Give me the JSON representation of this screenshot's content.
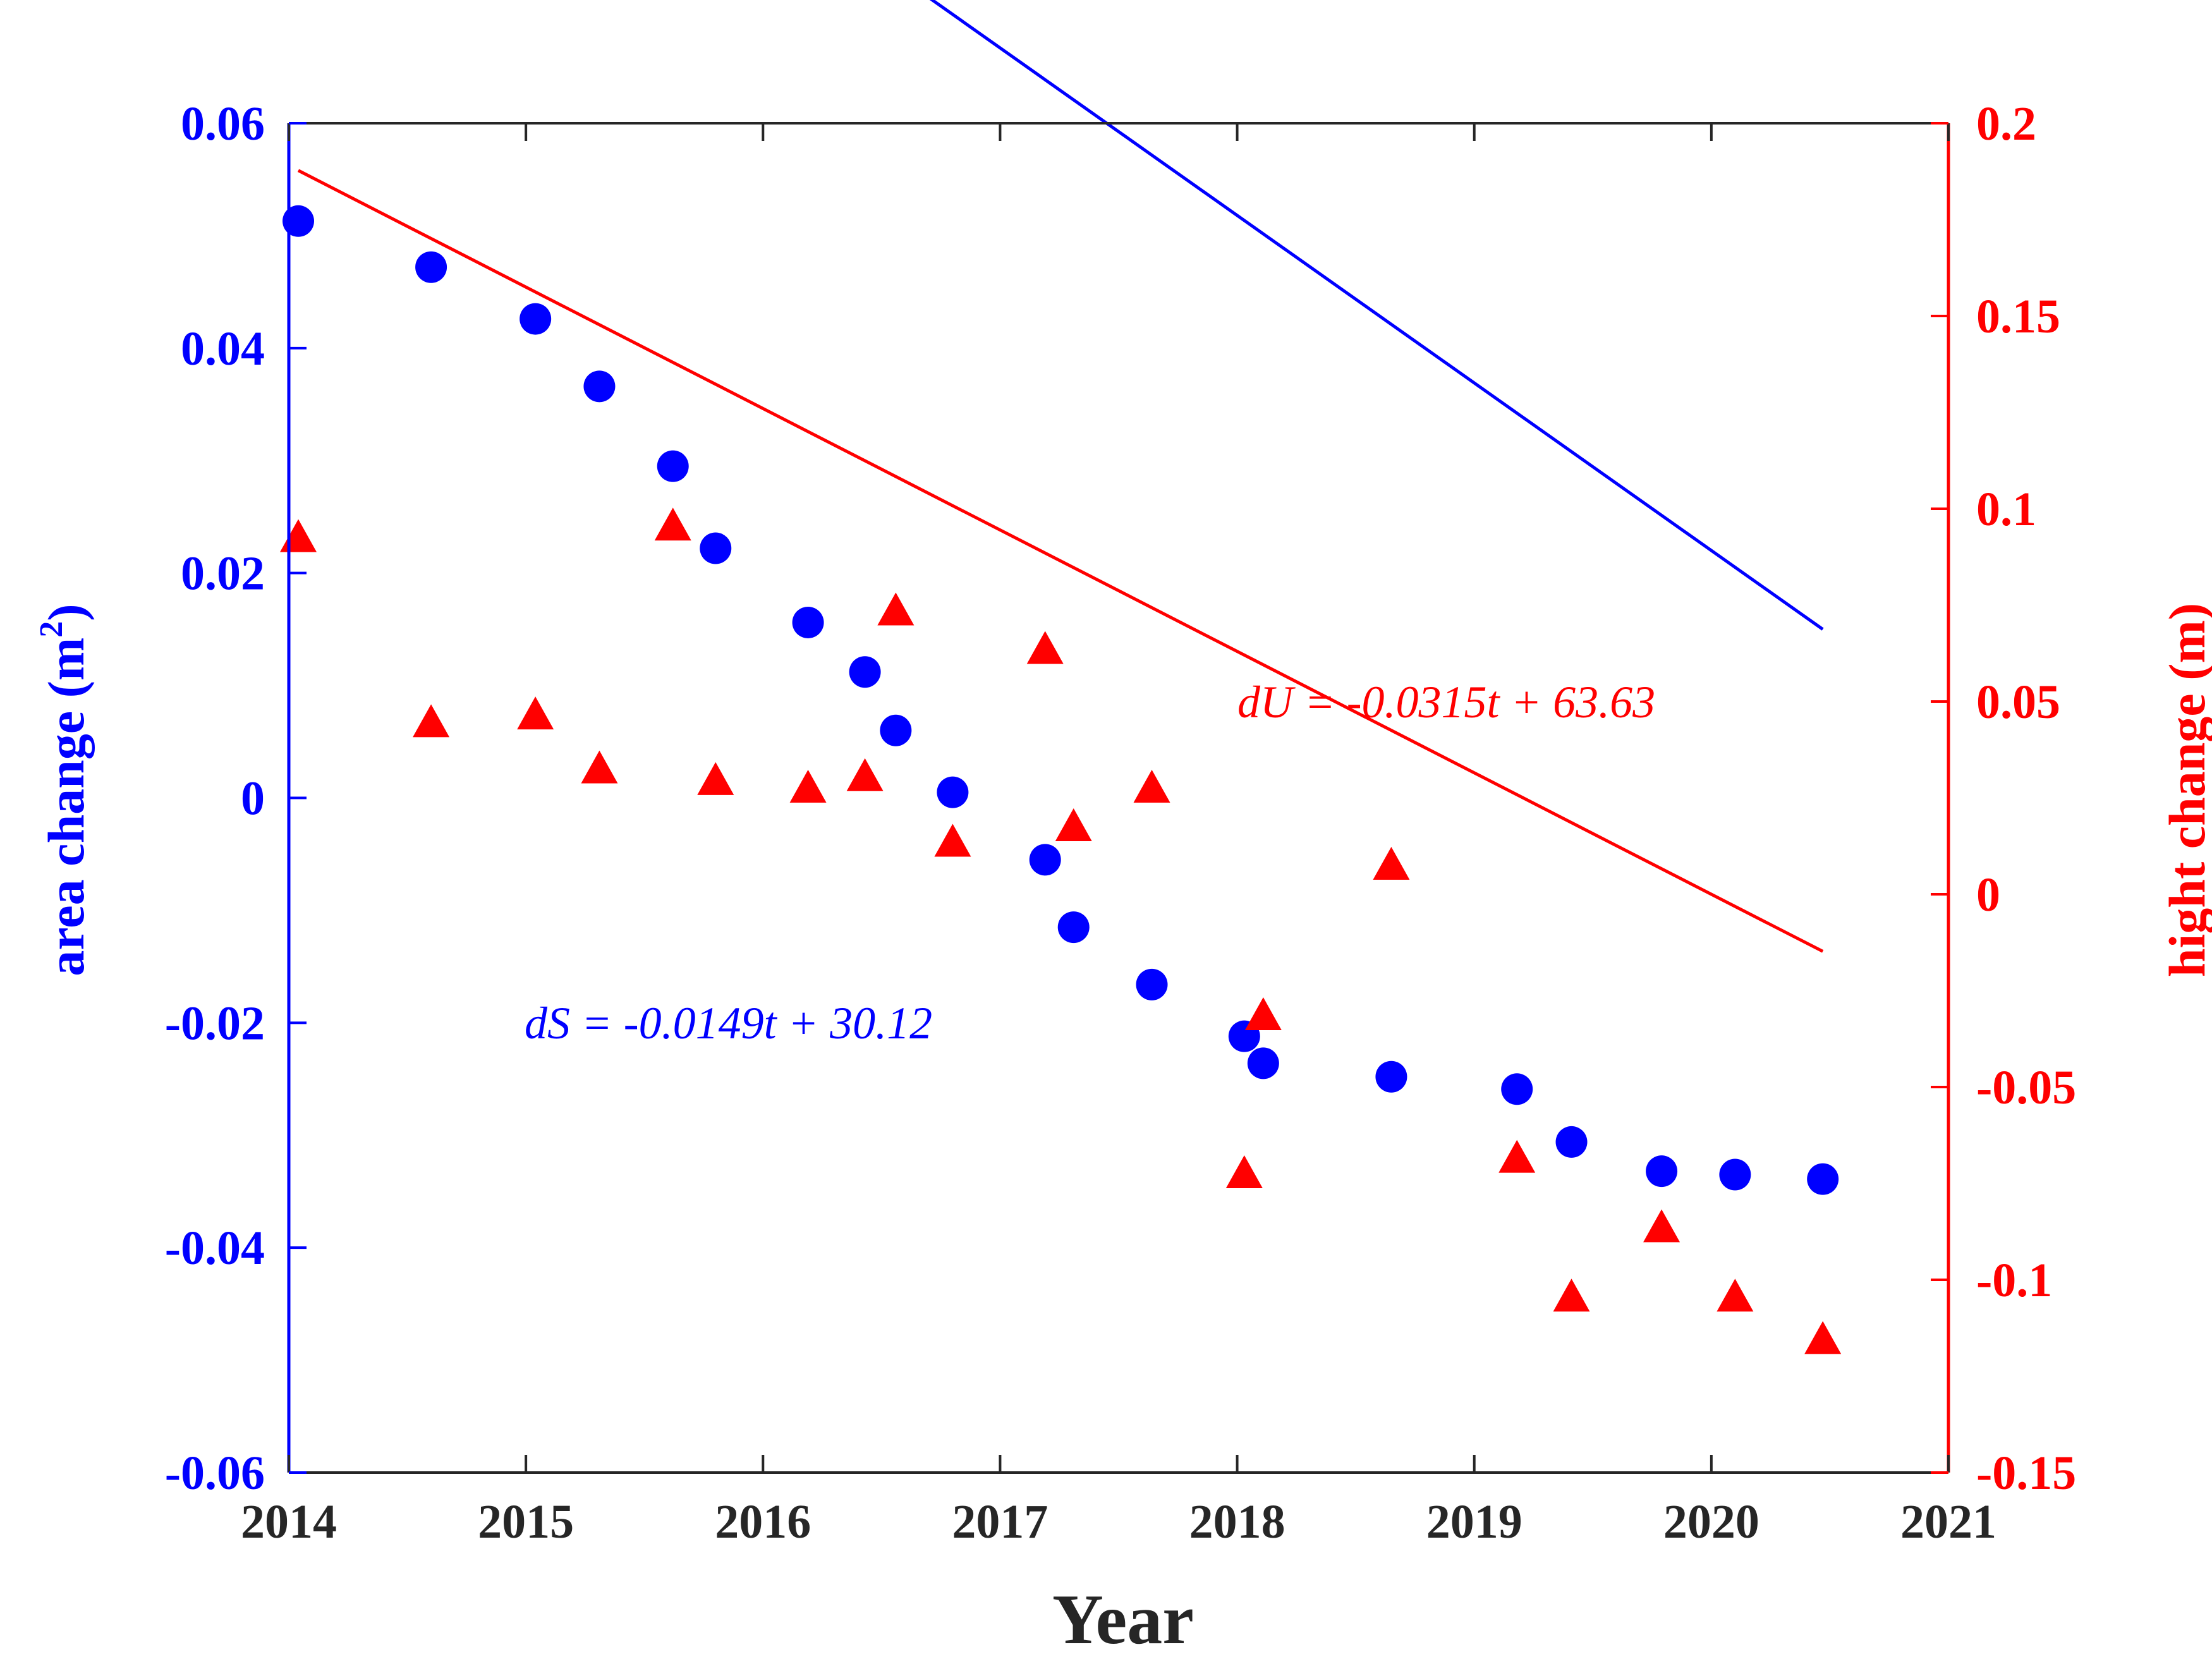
{
  "chart_data": {
    "type": "scatter",
    "xlabel": "Year",
    "ylabel_left": "area change (m",
    "ylabel_left_sup": "2",
    "ylabel_left_end": ")",
    "ylabel_right": "hight change (m)",
    "xlim": [
      2014,
      2021
    ],
    "ylim_left": [
      -0.06,
      0.06
    ],
    "ylim_right": [
      -0.15,
      0.2
    ],
    "x_ticks": [
      "2014",
      "2015",
      "2016",
      "2017",
      "2018",
      "2019",
      "2020",
      "2021"
    ],
    "y_ticks_left": [
      "-0.06",
      "-0.04",
      "-0.02",
      "0",
      "0.02",
      "0.04",
      "0.06"
    ],
    "y_ticks_right": [
      "-0.15",
      "-0.1",
      "-0.05",
      "0",
      "0.05",
      "0.1",
      "0.15",
      "0.2"
    ],
    "colors": {
      "area": "#0000ff",
      "height": "#ff0000",
      "frame": "#262626"
    },
    "grid": false,
    "series": [
      {
        "axis": "left",
        "marker": "circle",
        "x": [
          2014.04,
          2014.6,
          2015.04,
          2015.31,
          2015.62,
          2015.8,
          2016.19,
          2016.43,
          2016.56,
          2016.8,
          2017.19,
          2017.31,
          2017.64,
          2018.03,
          2018.11,
          2018.65,
          2019.18,
          2019.41,
          2019.79,
          2020.1,
          2020.47
        ],
        "y": [
          0.0513,
          0.0472,
          0.0426,
          0.0366,
          0.0295,
          0.0222,
          0.0156,
          0.0112,
          0.006,
          0.0005,
          -0.0055,
          -0.0115,
          -0.0166,
          -0.0212,
          -0.0236,
          -0.0248,
          -0.0259,
          -0.0306,
          -0.0332,
          -0.0335,
          -0.0339
        ]
      },
      {
        "axis": "right",
        "marker": "triangle",
        "x": [
          2014.04,
          2014.6,
          2015.04,
          2015.31,
          2015.62,
          2015.8,
          2016.19,
          2016.43,
          2016.56,
          2016.8,
          2017.19,
          2017.31,
          2017.64,
          2018.03,
          2018.11,
          2018.65,
          2019.18,
          2019.41,
          2019.79,
          2020.1,
          2020.47
        ],
        "y": [
          0.092,
          0.044,
          0.046,
          0.032,
          0.095,
          0.029,
          0.027,
          0.03,
          0.073,
          0.013,
          0.063,
          0.017,
          0.027,
          -0.073,
          -0.032,
          0.007,
          -0.069,
          -0.105,
          -0.087,
          -0.105,
          -0.116
        ]
      }
    ],
    "fits": [
      {
        "axis": "left",
        "label": "dS = -0.0149t + 30.12",
        "slope": -0.0149,
        "intercept": 30.12,
        "x_range": [
          2014.04,
          2020.47
        ]
      },
      {
        "axis": "right",
        "label": "dU = -0.0315t + 63.63",
        "slope": -0.0315,
        "intercept": 63.63,
        "x_range": [
          2014.04,
          2020.47
        ]
      }
    ]
  }
}
